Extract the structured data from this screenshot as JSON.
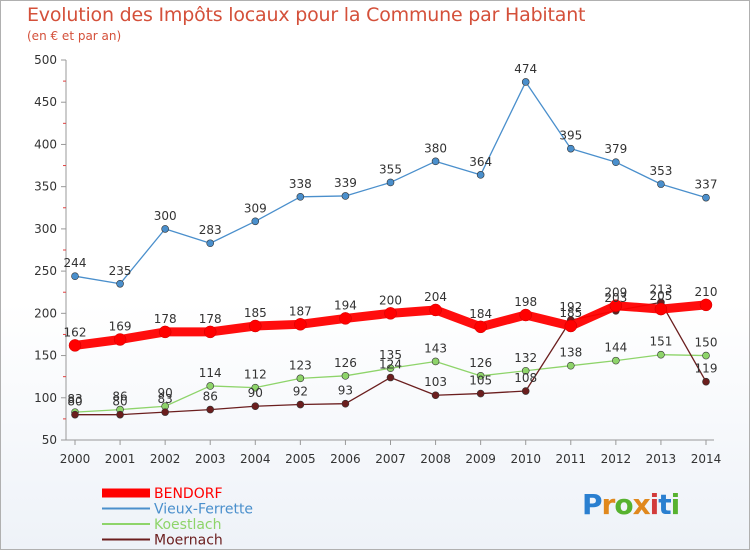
{
  "title": "Evolution des Impôts locaux pour la Commune par Habitant",
  "subtitle": "(en € et par an)",
  "logo": {
    "text": "Proxiti",
    "colors": [
      "#2a7fd0",
      "#e0881d",
      "#57b22f",
      "#e0881d",
      "#d23b3b",
      "#2a7fd0",
      "#57b22f"
    ]
  },
  "chart_data": {
    "type": "line",
    "x": [
      2000,
      2001,
      2002,
      2003,
      2004,
      2005,
      2006,
      2007,
      2008,
      2009,
      2010,
      2011,
      2012,
      2013,
      2014
    ],
    "ylim": [
      50,
      500
    ],
    "yticks": [
      50,
      100,
      150,
      200,
      250,
      300,
      350,
      400,
      450,
      500
    ],
    "grid": false,
    "legend": "bottom-left",
    "series": [
      {
        "name": "BENDORF",
        "color": "#ff0000",
        "values": [
          162,
          169,
          178,
          178,
          185,
          187,
          194,
          200,
          204,
          184,
          198,
          185,
          209,
          205,
          210
        ]
      },
      {
        "name": "Vieux-Ferrette",
        "color": "#4a8fcc",
        "values": [
          244,
          235,
          300,
          283,
          309,
          338,
          339,
          355,
          380,
          364,
          474,
          395,
          379,
          353,
          337
        ]
      },
      {
        "name": "Koestlach",
        "color": "#8ed46a",
        "values": [
          83,
          86,
          90,
          114,
          112,
          123,
          126,
          135,
          143,
          126,
          132,
          138,
          144,
          151,
          150
        ]
      },
      {
        "name": "Moernach",
        "color": "#6b1e1e",
        "values": [
          80,
          80,
          83,
          86,
          90,
          92,
          93,
          124,
          103,
          105,
          108,
          192,
          203,
          213,
          119
        ]
      }
    ]
  }
}
